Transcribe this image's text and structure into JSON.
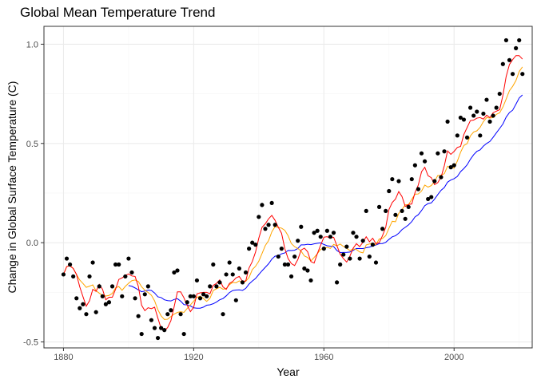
{
  "chart_data": {
    "type": "scatter",
    "title": "Global Mean Temperature Trend",
    "xlabel": "Year",
    "ylabel": "Change in Global Surface Temperature (C)",
    "xlim": [
      1874,
      2024
    ],
    "ylim": [
      -0.53,
      1.09
    ],
    "x_ticks": [
      1880,
      1920,
      1960,
      2000
    ],
    "x_tick_labels": [
      "1880",
      "1920",
      "1960",
      "2000"
    ],
    "y_ticks": [
      -0.5,
      0.0,
      0.5,
      1.0
    ],
    "y_tick_labels": [
      "-0.5",
      "0.0",
      "0.5",
      "1.0"
    ],
    "grid": true,
    "colors": {
      "points": "#000000",
      "red_line": "#ff0000",
      "orange_line": "#ffa500",
      "blue_line": "#0000ff",
      "panel_border": "#333333",
      "grid_major": "#ebebeb",
      "grid_minor": "#f5f5f5"
    },
    "series": [
      {
        "kind": "points",
        "color": "#000000",
        "x": [
          1880,
          1881,
          1882,
          1883,
          1884,
          1885,
          1886,
          1887,
          1888,
          1889,
          1890,
          1891,
          1892,
          1893,
          1894,
          1895,
          1896,
          1897,
          1898,
          1899,
          1900,
          1901,
          1902,
          1903,
          1904,
          1905,
          1906,
          1907,
          1908,
          1909,
          1910,
          1911,
          1912,
          1913,
          1914,
          1915,
          1916,
          1917,
          1918,
          1919,
          1920,
          1921,
          1922,
          1923,
          1924,
          1925,
          1926,
          1927,
          1928,
          1929,
          1930,
          1931,
          1932,
          1933,
          1934,
          1935,
          1936,
          1937,
          1938,
          1939,
          1940,
          1941,
          1942,
          1943,
          1944,
          1945,
          1946,
          1947,
          1948,
          1949,
          1950,
          1951,
          1952,
          1953,
          1954,
          1955,
          1956,
          1957,
          1958,
          1959,
          1960,
          1961,
          1962,
          1963,
          1964,
          1965,
          1966,
          1967,
          1968,
          1969,
          1970,
          1971,
          1972,
          1973,
          1974,
          1975,
          1976,
          1977,
          1978,
          1979,
          1980,
          1981,
          1982,
          1983,
          1984,
          1985,
          1986,
          1987,
          1988,
          1989,
          1990,
          1991,
          1992,
          1993,
          1994,
          1995,
          1996,
          1997,
          1998,
          1999,
          2000,
          2001,
          2002,
          2003,
          2004,
          2005,
          2006,
          2007,
          2008,
          2009,
          2010,
          2011,
          2012,
          2013,
          2014,
          2015,
          2016,
          2017,
          2018,
          2019,
          2020,
          2021
        ],
        "y": [
          -0.16,
          -0.08,
          -0.11,
          -0.17,
          -0.28,
          -0.33,
          -0.31,
          -0.36,
          -0.17,
          -0.1,
          -0.35,
          -0.22,
          -0.27,
          -0.31,
          -0.3,
          -0.22,
          -0.11,
          -0.11,
          -0.27,
          -0.17,
          -0.08,
          -0.15,
          -0.28,
          -0.37,
          -0.46,
          -0.26,
          -0.22,
          -0.39,
          -0.43,
          -0.48,
          -0.43,
          -0.44,
          -0.36,
          -0.34,
          -0.15,
          -0.14,
          -0.36,
          -0.46,
          -0.3,
          -0.27,
          -0.27,
          -0.19,
          -0.28,
          -0.26,
          -0.27,
          -0.22,
          -0.11,
          -0.22,
          -0.2,
          -0.36,
          -0.16,
          -0.1,
          -0.16,
          -0.29,
          -0.13,
          -0.2,
          -0.15,
          -0.03,
          0.0,
          -0.01,
          0.13,
          0.19,
          0.07,
          0.09,
          0.2,
          0.09,
          -0.07,
          -0.03,
          -0.11,
          -0.11,
          -0.17,
          -0.07,
          0.01,
          0.08,
          -0.13,
          -0.14,
          -0.19,
          0.05,
          0.06,
          0.03,
          -0.03,
          0.06,
          0.03,
          0.05,
          -0.2,
          -0.11,
          -0.06,
          -0.02,
          -0.08,
          0.05,
          0.03,
          -0.08,
          0.01,
          0.16,
          -0.07,
          -0.01,
          -0.1,
          0.18,
          0.07,
          0.16,
          0.26,
          0.32,
          0.14,
          0.31,
          0.16,
          0.12,
          0.18,
          0.32,
          0.39,
          0.27,
          0.45,
          0.41,
          0.22,
          0.23,
          0.31,
          0.45,
          0.33,
          0.46,
          0.61,
          0.38,
          0.39,
          0.54,
          0.63,
          0.62,
          0.53,
          0.68,
          0.64,
          0.66,
          0.54,
          0.65,
          0.72,
          0.61,
          0.64,
          0.68,
          0.75,
          0.9,
          1.02,
          0.92,
          0.85,
          0.98,
          1.02,
          0.85
        ]
      },
      {
        "kind": "line",
        "color": "#ff0000"
      },
      {
        "kind": "line",
        "color": "#ffa500"
      },
      {
        "kind": "line",
        "color": "#0000ff"
      }
    ]
  }
}
